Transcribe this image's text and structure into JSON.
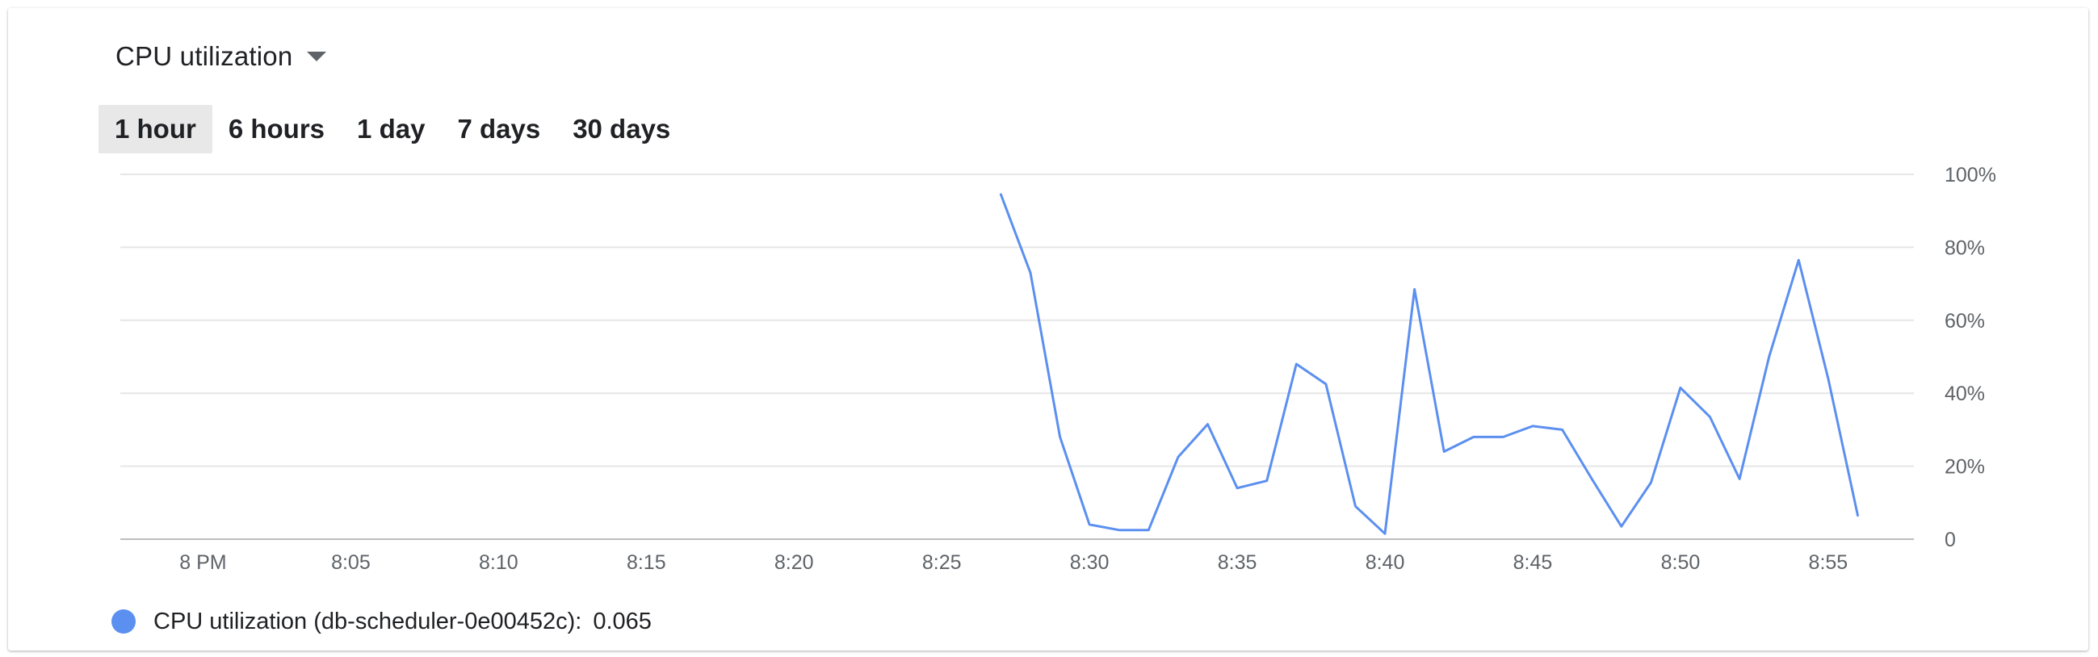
{
  "metric_selector": {
    "label": "CPU utilization",
    "icon": "caret-down-icon"
  },
  "time_ranges": [
    {
      "label": "1 hour",
      "active": true
    },
    {
      "label": "6 hours",
      "active": false
    },
    {
      "label": "1 day",
      "active": false
    },
    {
      "label": "7 days",
      "active": false
    },
    {
      "label": "30 days",
      "active": false
    }
  ],
  "legend": {
    "label": "CPU utilization (db-scheduler-0e00452c):",
    "value": "0.065"
  },
  "colors": {
    "series": "#5b8ff0",
    "grid": "#e6e6e6",
    "axis": "#bdbdbd",
    "tick_text": "#5f6368",
    "active_tab": "#e8e8e8"
  },
  "chart_data": {
    "type": "line",
    "title": "",
    "xlabel": "",
    "ylabel": "",
    "x_ticks": [
      "8 PM",
      "8:05",
      "8:10",
      "8:15",
      "8:20",
      "8:25",
      "8:30",
      "8:35",
      "8:40",
      "8:45",
      "8:50",
      "8:55"
    ],
    "y_ticks": [
      "0",
      "20%",
      "40%",
      "60%",
      "80%",
      "100%"
    ],
    "xlim_minutes": [
      -2.8,
      57.9
    ],
    "ylim": [
      0,
      100
    ],
    "grid": true,
    "y_axis_side": "right",
    "series": [
      {
        "name": "CPU utilization (db-scheduler-0e00452c)",
        "x_minutes": [
          27,
          28,
          29,
          30,
          31,
          32,
          33,
          34,
          35,
          36,
          37,
          38,
          39,
          40,
          41,
          42,
          43,
          44,
          45,
          46,
          47,
          48,
          49,
          50,
          51,
          52,
          53,
          54,
          55,
          56
        ],
        "values": [
          94.5,
          73,
          28,
          4,
          2.5,
          2.5,
          22.5,
          31.5,
          14,
          16,
          48,
          42.5,
          9,
          1.5,
          68.5,
          24,
          28,
          28,
          31,
          30,
          16.5,
          3.5,
          15.5,
          41.5,
          33.5,
          16.5,
          50,
          76.5,
          44,
          6.5
        ]
      }
    ]
  }
}
